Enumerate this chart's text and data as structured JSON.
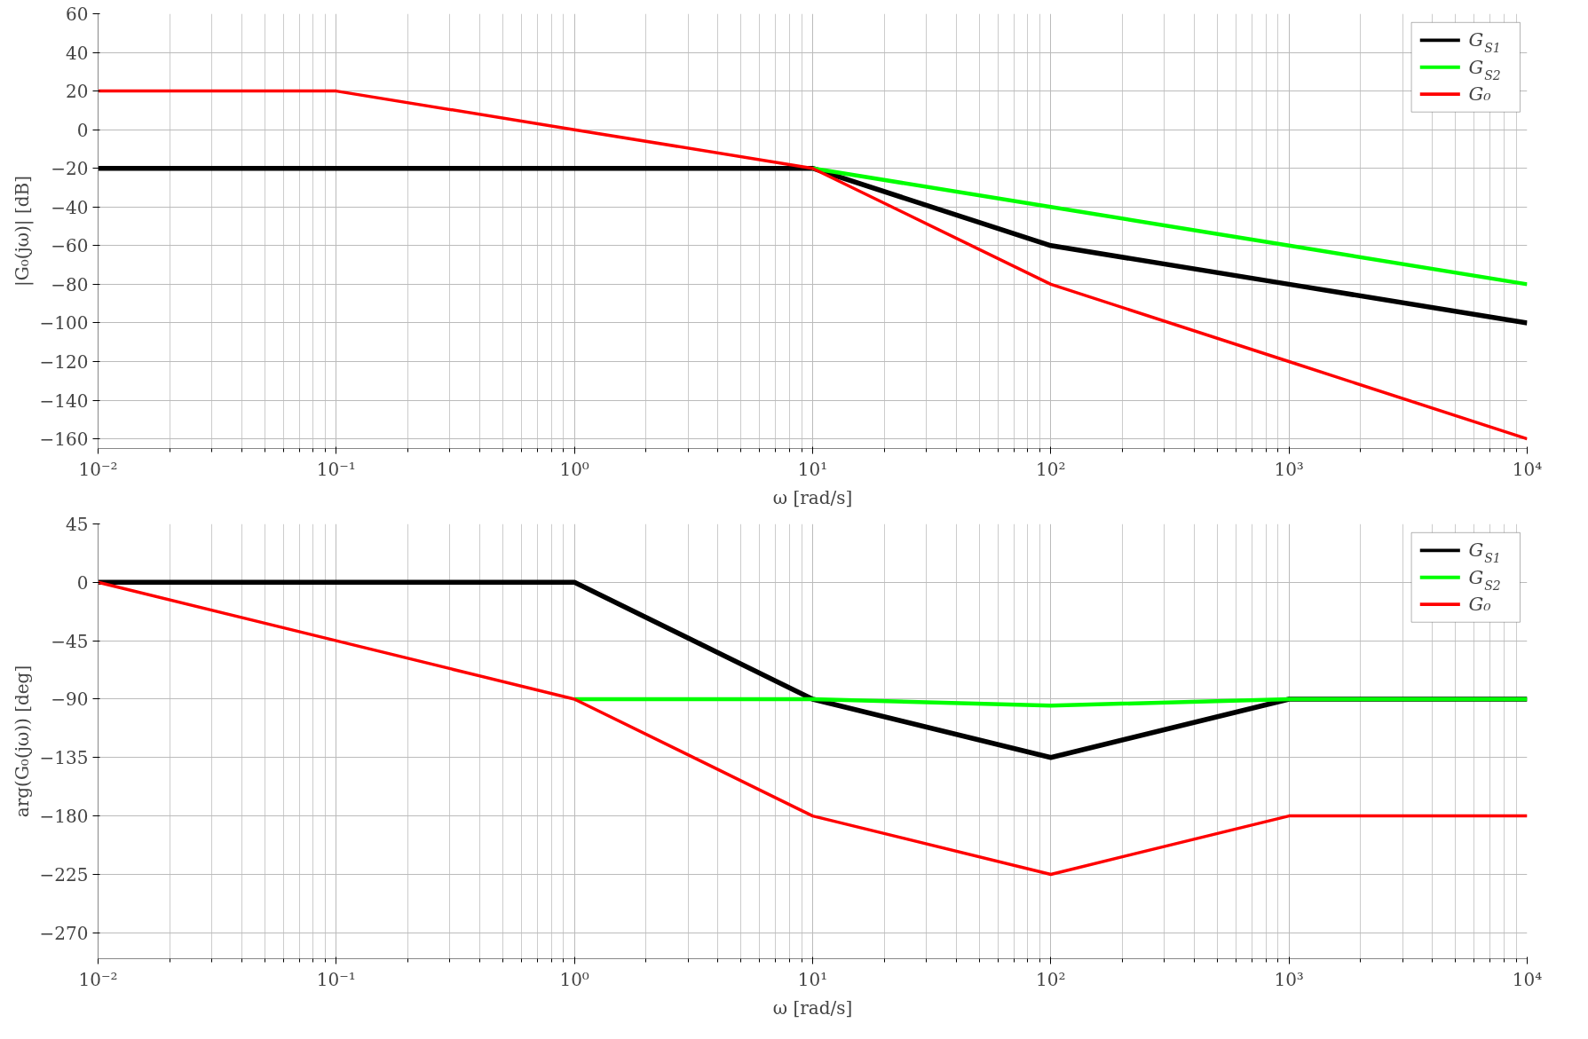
{
  "chart_data": [
    {
      "type": "line",
      "xlabel": "ω [rad/s]",
      "ylabel": "|G₀(jω)| [dB]",
      "log": "x",
      "grid": true,
      "legend": "top right",
      "line_style": "solid",
      "marker": "none",
      "xlim": [
        0.01,
        10000
      ],
      "xticks": [
        {
          "value": 0.01,
          "label": "10⁻²"
        },
        {
          "value": 0.1,
          "label": "10⁻¹"
        },
        {
          "value": 1,
          "label": "10⁰"
        },
        {
          "value": 10,
          "label": "10¹"
        },
        {
          "value": 100,
          "label": "10²"
        },
        {
          "value": 1000,
          "label": "10³"
        },
        {
          "value": 10000,
          "label": "10⁴"
        }
      ],
      "ylim": [
        -165,
        60
      ],
      "yticks": [
        -160,
        -140,
        -120,
        -100,
        -80,
        -60,
        -40,
        -20,
        0,
        20,
        40,
        60
      ],
      "x": [
        0.01,
        0.1,
        1,
        10,
        100,
        1000,
        10000
      ],
      "series": [
        {
          "name": "G$_{S1}$",
          "color": "#000000",
          "values": [
            -20,
            -20,
            -20,
            -20,
            -60,
            -80,
            -100
          ]
        },
        {
          "name": "G$_{S2}$",
          "color": "#00ff00",
          "values": [
            null,
            null,
            null,
            -20,
            -40,
            -60,
            -80
          ]
        },
        {
          "name": "G₀",
          "color": "#ff0000",
          "values": [
            20,
            20,
            0,
            -20,
            -80,
            -120,
            -160
          ]
        }
      ]
    },
    {
      "type": "line",
      "xlabel": "ω [rad/s]",
      "ylabel": "arg(G₀(jω)) [deg]",
      "log": "x",
      "grid": true,
      "legend": "top right",
      "line_style": "solid",
      "marker": "none",
      "xlim": [
        0.01,
        10000
      ],
      "xticks": [
        {
          "value": 0.01,
          "label": "10⁻²"
        },
        {
          "value": 0.1,
          "label": "10⁻¹"
        },
        {
          "value": 1,
          "label": "10⁰"
        },
        {
          "value": 10,
          "label": "10¹"
        },
        {
          "value": 100,
          "label": "10²"
        },
        {
          "value": 1000,
          "label": "10³"
        },
        {
          "value": 10000,
          "label": "10⁴"
        }
      ],
      "ylim": [
        -290,
        45
      ],
      "yticks": [
        -270,
        -225,
        -180,
        -135,
        -90,
        -45,
        0,
        45
      ],
      "x": [
        0.01,
        0.1,
        1,
        10,
        100,
        1000,
        10000
      ],
      "series": [
        {
          "name": "G$_{S1}$",
          "color": "#000000",
          "values": [
            0,
            0,
            0,
            -90,
            -135,
            -90,
            -90
          ]
        },
        {
          "name": "G$_{S2}$",
          "color": "#00ff00",
          "values": [
            null,
            null,
            -90,
            -90,
            -95,
            -90,
            -90
          ]
        },
        {
          "name": "G₀",
          "color": "#ff0000",
          "values": [
            0,
            -45,
            -90,
            -180,
            -225,
            -180,
            -180
          ]
        }
      ]
    }
  ]
}
